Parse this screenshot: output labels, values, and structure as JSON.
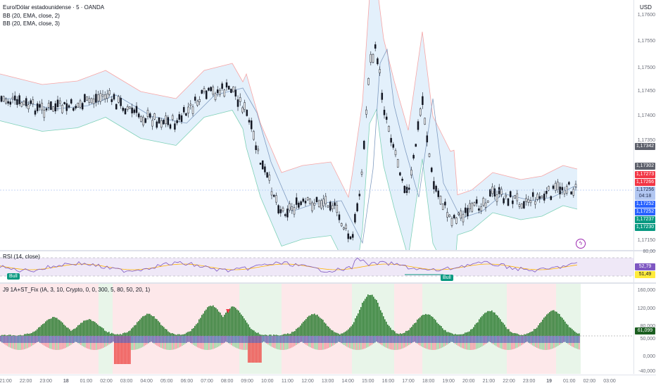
{
  "legend": {
    "symbol": "Euro/Dólar estadounidense · 5 · OANDA",
    "bb1": "BB (20, EMA, close, 2)",
    "bb2": "BB (20, EMA, close, 3)",
    "rsi": "RSI (14, close)",
    "indicator": "J9 1A+ST_Fix (IA, 3, 10, Crypto, 0, 0, 300, 5, 80, 50, 20, 1)"
  },
  "currency": "USD",
  "price_axis": [
    "1,17600",
    "1,17550",
    "1,17500",
    "1,17450",
    "1,17400",
    "1,17350",
    "1,17300",
    "1,17250",
    "1,17200",
    "1,17150"
  ],
  "price_tags": [
    {
      "text": "1,17342",
      "color": "#5d606b"
    },
    {
      "text": "1,17302",
      "color": "#5d606b"
    },
    {
      "text": "1,17273",
      "color": "#f23645"
    },
    {
      "text": "1,17266",
      "color": "#f23645"
    },
    {
      "text": "1,17256",
      "color": "#b2c7f2",
      "text_color": "#1e2a4a"
    },
    {
      "text": "04:18",
      "color": "#b2c7f2",
      "text_color": "#1e2a4a"
    },
    {
      "text": "1,17252",
      "color": "#2962ff"
    },
    {
      "text": "1,17252",
      "color": "#2962ff"
    },
    {
      "text": "1,17237",
      "color": "#089981"
    },
    {
      "text": "1,17230",
      "color": "#089981"
    }
  ],
  "rsi_axis": [
    "80,00"
  ],
  "rsi_tags": [
    {
      "text": "52,79",
      "color": "#7e57c2"
    },
    {
      "text": "51,49",
      "color": "#ffeb3b",
      "text_color": "#131722"
    }
  ],
  "rsi_badges": [
    "Bull",
    "Bull"
  ],
  "ind_axis": [
    "160,000",
    "120,000",
    "80,000",
    "50,000",
    "0,000",
    "-40,000"
  ],
  "ind_tag": {
    "text": "61,099",
    "color": "#1b5e20"
  },
  "time_axis": [
    "21:00",
    "22:00",
    "23:00",
    "18",
    "01:00",
    "02:00",
    "03:00",
    "04:00",
    "05:00",
    "06:00",
    "07:00",
    "08:00",
    "09:00",
    "10:00",
    "11:00",
    "12:00",
    "13:00",
    "14:00",
    "15:00",
    "16:00",
    "17:00",
    "18:00",
    "19:00",
    "20:00",
    "21:00",
    "22:00",
    "23:00",
    "19",
    "01:00",
    "02:00",
    "03:00"
  ],
  "colors": {
    "up": "#131722",
    "down": "#131722",
    "bb_fill": "#e3f0fb",
    "bb_upper": "#f7a5a5",
    "bb_lower": "#7fd1b8",
    "rsi_line": "#7e57c2",
    "rsi_ma": "#ffb300",
    "hist_pos": "#2e7d32",
    "hist_neg": "#3f51b5",
    "bg_green": "#e8f5e9",
    "bg_red": "#fde8ea"
  }
}
